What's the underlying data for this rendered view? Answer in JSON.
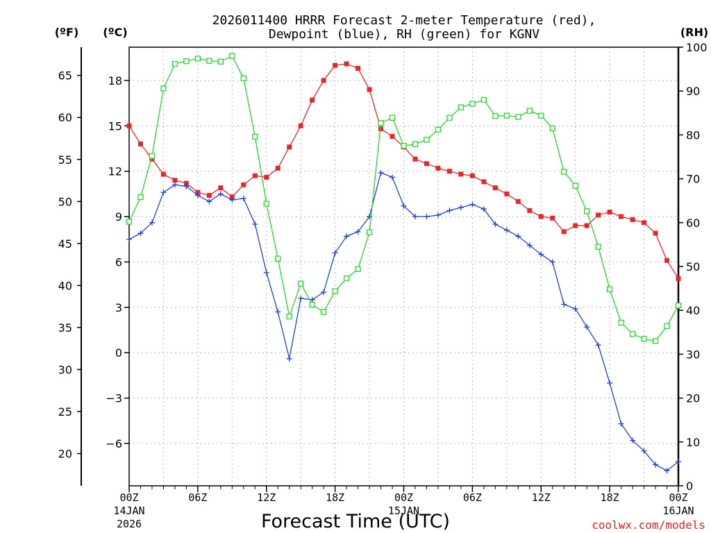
{
  "chart_data": {
    "type": "line",
    "title_line1": "2026011400 HRRR Forecast 2-meter Temperature (red),",
    "title_line2": "Dewpoint (blue), RH (green) for KGNV",
    "xlabel": "Forecast Time (UTC)",
    "credit": "coolwx.com/models",
    "unit_f": "(ºF)",
    "unit_c": "(ºC)",
    "unit_rh": "(RH)",
    "x_range_hours": [
      0,
      48
    ],
    "c_range": [
      -8.8,
      20.2
    ],
    "f_range": [
      16.16,
      68.36
    ],
    "rh_range": [
      0,
      100
    ],
    "x_ticks": [
      {
        "hour": 0,
        "lines": [
          "00Z",
          "14JAN",
          "2026"
        ]
      },
      {
        "hour": 6,
        "lines": [
          "06Z"
        ]
      },
      {
        "hour": 12,
        "lines": [
          "12Z"
        ]
      },
      {
        "hour": 18,
        "lines": [
          "18Z"
        ]
      },
      {
        "hour": 24,
        "lines": [
          "00Z",
          "15JAN"
        ]
      },
      {
        "hour": 30,
        "lines": [
          "06Z"
        ]
      },
      {
        "hour": 36,
        "lines": [
          "12Z"
        ]
      },
      {
        "hour": 42,
        "lines": [
          "18Z"
        ]
      },
      {
        "hour": 48,
        "lines": [
          "00Z",
          "16JAN"
        ]
      }
    ],
    "c_ticks": [
      18,
      15,
      12,
      9,
      6,
      3,
      0,
      -3,
      -6
    ],
    "c_tick_labels": [
      "18",
      "15",
      "12",
      "9",
      "6",
      "3",
      "0",
      "−3",
      "−6"
    ],
    "f_ticks": [
      65,
      60,
      55,
      50,
      45,
      40,
      35,
      30,
      25,
      20
    ],
    "rh_ticks": [
      100,
      90,
      80,
      70,
      60,
      50,
      40,
      30,
      20,
      10,
      0
    ],
    "hours": [
      0,
      1,
      2,
      3,
      4,
      5,
      6,
      7,
      8,
      9,
      10,
      11,
      12,
      13,
      14,
      15,
      16,
      17,
      18,
      19,
      20,
      21,
      22,
      23,
      24,
      25,
      26,
      27,
      28,
      29,
      30,
      31,
      32,
      33,
      34,
      35,
      36,
      37,
      38,
      39,
      40,
      41,
      42,
      43,
      44,
      45,
      46,
      47,
      48
    ],
    "series": [
      {
        "name": "Temperature",
        "unit": "C",
        "color": "#e8262a",
        "marker": "filled-square",
        "values": [
          15.0,
          13.8,
          12.8,
          11.8,
          11.4,
          11.2,
          10.6,
          10.4,
          10.9,
          10.3,
          11.1,
          11.7,
          11.6,
          12.2,
          13.6,
          15.0,
          16.7,
          18.0,
          19.0,
          19.1,
          18.8,
          17.4,
          14.8,
          14.3,
          13.6,
          12.8,
          12.5,
          12.2,
          12.0,
          11.8,
          11.7,
          11.3,
          10.9,
          10.5,
          10.0,
          9.4,
          9.0,
          8.9,
          8.0,
          8.4,
          8.4,
          9.1,
          9.3,
          9.0,
          8.8,
          8.6,
          7.9,
          6.1,
          4.9
        ]
      },
      {
        "name": "Dewpoint",
        "unit": "C",
        "color": "#1f3fdb",
        "marker": "plus",
        "values": [
          7.5,
          7.9,
          8.6,
          10.6,
          11.1,
          11.0,
          10.4,
          10.0,
          10.5,
          10.1,
          10.2,
          8.5,
          5.3,
          2.7,
          -0.4,
          3.6,
          3.5,
          4.0,
          6.6,
          7.7,
          8.0,
          9.0,
          11.9,
          11.6,
          9.7,
          9.0,
          9.0,
          9.1,
          9.4,
          9.6,
          9.8,
          9.5,
          8.5,
          8.1,
          7.7,
          7.1,
          6.5,
          6.0,
          3.2,
          2.9,
          1.7,
          0.5,
          -2.0,
          -4.7,
          -5.8,
          -6.5,
          -7.4,
          -7.8,
          -7.2
        ]
      },
      {
        "name": "RH",
        "unit": "%",
        "color": "#22d828",
        "marker": "open-square",
        "values": [
          60.2,
          65.8,
          75.2,
          90.6,
          96.2,
          96.8,
          97.4,
          96.9,
          96.7,
          98.0,
          92.9,
          79.6,
          64.3,
          51.8,
          38.6,
          46.1,
          41.3,
          39.6,
          44.4,
          47.3,
          49.4,
          57.8,
          82.7,
          83.9,
          77.5,
          77.9,
          78.9,
          81.2,
          83.9,
          86.3,
          87.1,
          88.0,
          84.3,
          84.4,
          84.1,
          85.5,
          84.4,
          81.5,
          71.6,
          68.4,
          62.6,
          54.5,
          44.8,
          37.2,
          34.6,
          33.5,
          33.0,
          36.4,
          41.1
        ]
      }
    ]
  }
}
